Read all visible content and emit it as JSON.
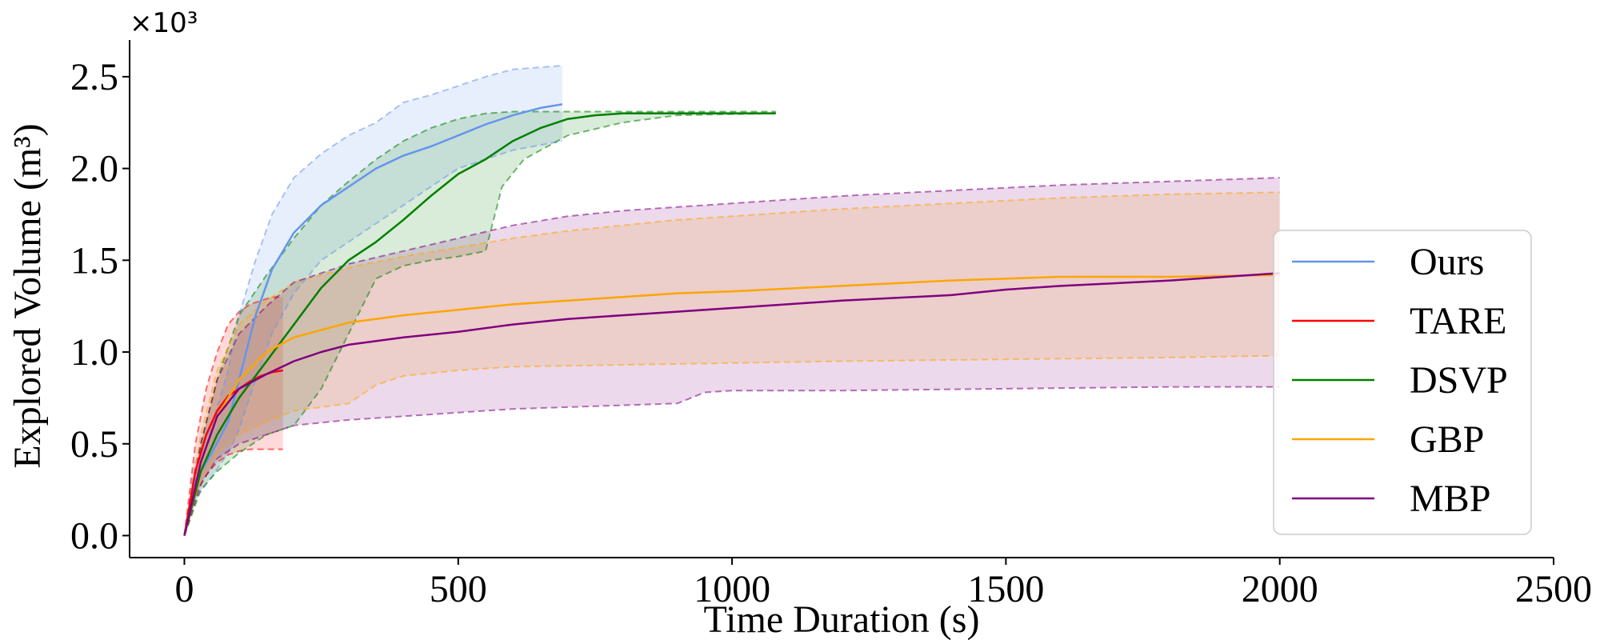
{
  "chart_data": {
    "type": "line",
    "xlabel": "Time Duration (s)",
    "ylabel": "Explored Volume (m³)",
    "y_multiplier_label": "×10³",
    "xlim": [
      -100,
      2500
    ],
    "ylim": [
      -0.12,
      2.7
    ],
    "x_ticks": [
      0,
      500,
      1000,
      1500,
      2000,
      2500
    ],
    "x_tick_labels": [
      "0",
      "500",
      "1000",
      "1500",
      "2000",
      "2500"
    ],
    "y_ticks": [
      0.0,
      0.5,
      1.0,
      1.5,
      2.0,
      2.5
    ],
    "y_tick_labels": [
      "0.0",
      "0.5",
      "1.0",
      "1.5",
      "2.0",
      "2.5"
    ],
    "grid": false,
    "legend_position": "right",
    "series": [
      {
        "name": "Ours",
        "color": "#6495ED",
        "mean": [
          [
            0,
            0
          ],
          [
            20,
            0.3
          ],
          [
            50,
            0.45
          ],
          [
            80,
            0.62
          ],
          [
            100,
            0.85
          ],
          [
            130,
            1.2
          ],
          [
            160,
            1.45
          ],
          [
            200,
            1.65
          ],
          [
            250,
            1.8
          ],
          [
            300,
            1.9
          ],
          [
            350,
            2.0
          ],
          [
            400,
            2.07
          ],
          [
            450,
            2.12
          ],
          [
            500,
            2.18
          ],
          [
            550,
            2.24
          ],
          [
            600,
            2.29
          ],
          [
            650,
            2.33
          ],
          [
            690,
            2.35
          ]
        ],
        "upper": [
          [
            0,
            0
          ],
          [
            20,
            0.4
          ],
          [
            50,
            0.6
          ],
          [
            80,
            0.9
          ],
          [
            100,
            1.2
          ],
          [
            130,
            1.5
          ],
          [
            160,
            1.75
          ],
          [
            200,
            1.95
          ],
          [
            250,
            2.08
          ],
          [
            300,
            2.18
          ],
          [
            350,
            2.25
          ],
          [
            400,
            2.36
          ],
          [
            450,
            2.4
          ],
          [
            500,
            2.45
          ],
          [
            550,
            2.5
          ],
          [
            600,
            2.54
          ],
          [
            690,
            2.56
          ]
        ],
        "lower": [
          [
            0,
            0
          ],
          [
            20,
            0.2
          ],
          [
            50,
            0.32
          ],
          [
            80,
            0.45
          ],
          [
            100,
            0.58
          ],
          [
            130,
            0.85
          ],
          [
            160,
            1.1
          ],
          [
            200,
            1.32
          ],
          [
            250,
            1.5
          ],
          [
            300,
            1.6
          ],
          [
            350,
            1.7
          ],
          [
            400,
            1.8
          ],
          [
            450,
            1.9
          ],
          [
            500,
            2.0
          ],
          [
            550,
            2.05
          ],
          [
            600,
            2.1
          ],
          [
            690,
            2.15
          ]
        ]
      },
      {
        "name": "TARE",
        "color": "#FF0000",
        "mean": [
          [
            0,
            0
          ],
          [
            20,
            0.35
          ],
          [
            40,
            0.55
          ],
          [
            60,
            0.68
          ],
          [
            80,
            0.76
          ],
          [
            100,
            0.8
          ],
          [
            120,
            0.84
          ],
          [
            140,
            0.87
          ],
          [
            160,
            0.89
          ],
          [
            180,
            0.9
          ]
        ],
        "upper": [
          [
            0,
            0
          ],
          [
            20,
            0.5
          ],
          [
            40,
            0.8
          ],
          [
            60,
            1.0
          ],
          [
            80,
            1.15
          ],
          [
            100,
            1.22
          ],
          [
            120,
            1.26
          ],
          [
            140,
            1.28
          ],
          [
            160,
            1.3
          ],
          [
            180,
            1.3
          ]
        ],
        "lower": [
          [
            0,
            0
          ],
          [
            20,
            0.22
          ],
          [
            40,
            0.33
          ],
          [
            60,
            0.4
          ],
          [
            80,
            0.44
          ],
          [
            100,
            0.46
          ],
          [
            120,
            0.47
          ],
          [
            180,
            0.47
          ]
        ]
      },
      {
        "name": "DSVP",
        "color": "#008000",
        "mean": [
          [
            0,
            0
          ],
          [
            30,
            0.35
          ],
          [
            60,
            0.55
          ],
          [
            100,
            0.75
          ],
          [
            150,
            0.95
          ],
          [
            200,
            1.15
          ],
          [
            250,
            1.35
          ],
          [
            300,
            1.5
          ],
          [
            350,
            1.6
          ],
          [
            400,
            1.72
          ],
          [
            450,
            1.85
          ],
          [
            500,
            1.97
          ],
          [
            550,
            2.05
          ],
          [
            600,
            2.15
          ],
          [
            650,
            2.22
          ],
          [
            700,
            2.27
          ],
          [
            750,
            2.29
          ],
          [
            800,
            2.3
          ],
          [
            900,
            2.3
          ],
          [
            1080,
            2.3
          ]
        ],
        "upper": [
          [
            0,
            0
          ],
          [
            30,
            0.5
          ],
          [
            60,
            0.85
          ],
          [
            100,
            1.2
          ],
          [
            150,
            1.42
          ],
          [
            200,
            1.62
          ],
          [
            250,
            1.8
          ],
          [
            300,
            1.93
          ],
          [
            350,
            2.05
          ],
          [
            400,
            2.15
          ],
          [
            450,
            2.22
          ],
          [
            500,
            2.27
          ],
          [
            550,
            2.3
          ],
          [
            600,
            2.31
          ],
          [
            1080,
            2.31
          ]
        ],
        "lower": [
          [
            0,
            0
          ],
          [
            30,
            0.25
          ],
          [
            60,
            0.35
          ],
          [
            100,
            0.45
          ],
          [
            150,
            0.55
          ],
          [
            200,
            0.6
          ],
          [
            250,
            0.8
          ],
          [
            300,
            1.1
          ],
          [
            350,
            1.4
          ],
          [
            400,
            1.47
          ],
          [
            450,
            1.5
          ],
          [
            500,
            1.52
          ],
          [
            550,
            1.55
          ],
          [
            580,
            1.9
          ],
          [
            620,
            2.05
          ],
          [
            700,
            2.18
          ],
          [
            800,
            2.25
          ],
          [
            900,
            2.29
          ],
          [
            1080,
            2.3
          ]
        ]
      },
      {
        "name": "GBP",
        "color": "#FFA500",
        "mean": [
          [
            0,
            0
          ],
          [
            30,
            0.4
          ],
          [
            60,
            0.65
          ],
          [
            100,
            0.85
          ],
          [
            150,
            1.0
          ],
          [
            200,
            1.08
          ],
          [
            300,
            1.16
          ],
          [
            400,
            1.2
          ],
          [
            500,
            1.23
          ],
          [
            600,
            1.26
          ],
          [
            700,
            1.28
          ],
          [
            800,
            1.3
          ],
          [
            900,
            1.32
          ],
          [
            1000,
            1.33
          ],
          [
            1200,
            1.36
          ],
          [
            1400,
            1.39
          ],
          [
            1600,
            1.41
          ],
          [
            1800,
            1.41
          ],
          [
            2000,
            1.42
          ]
        ],
        "upper": [
          [
            0,
            0
          ],
          [
            30,
            0.55
          ],
          [
            60,
            0.9
          ],
          [
            100,
            1.15
          ],
          [
            150,
            1.28
          ],
          [
            200,
            1.38
          ],
          [
            300,
            1.46
          ],
          [
            400,
            1.52
          ],
          [
            500,
            1.57
          ],
          [
            600,
            1.62
          ],
          [
            700,
            1.66
          ],
          [
            800,
            1.69
          ],
          [
            900,
            1.72
          ],
          [
            1000,
            1.74
          ],
          [
            1200,
            1.78
          ],
          [
            1400,
            1.81
          ],
          [
            1600,
            1.84
          ],
          [
            1800,
            1.86
          ],
          [
            2000,
            1.87
          ]
        ],
        "lower": [
          [
            0,
            0
          ],
          [
            30,
            0.3
          ],
          [
            60,
            0.45
          ],
          [
            100,
            0.55
          ],
          [
            150,
            0.62
          ],
          [
            200,
            0.68
          ],
          [
            300,
            0.72
          ],
          [
            350,
            0.82
          ],
          [
            400,
            0.87
          ],
          [
            500,
            0.9
          ],
          [
            600,
            0.92
          ],
          [
            800,
            0.93
          ],
          [
            1000,
            0.94
          ],
          [
            1200,
            0.95
          ],
          [
            1500,
            0.96
          ],
          [
            1800,
            0.97
          ],
          [
            2000,
            0.98
          ]
        ]
      },
      {
        "name": "MBP",
        "color": "#800080",
        "mean": [
          [
            0,
            0
          ],
          [
            30,
            0.4
          ],
          [
            60,
            0.65
          ],
          [
            100,
            0.8
          ],
          [
            150,
            0.88
          ],
          [
            200,
            0.95
          ],
          [
            250,
            1.0
          ],
          [
            300,
            1.04
          ],
          [
            400,
            1.08
          ],
          [
            500,
            1.11
          ],
          [
            600,
            1.15
          ],
          [
            700,
            1.18
          ],
          [
            800,
            1.2
          ],
          [
            900,
            1.22
          ],
          [
            1000,
            1.24
          ],
          [
            1200,
            1.28
          ],
          [
            1400,
            1.31
          ],
          [
            1500,
            1.34
          ],
          [
            1600,
            1.36
          ],
          [
            1800,
            1.39
          ],
          [
            2000,
            1.43
          ]
        ],
        "upper": [
          [
            0,
            0
          ],
          [
            30,
            0.5
          ],
          [
            60,
            0.85
          ],
          [
            100,
            1.1
          ],
          [
            150,
            1.25
          ],
          [
            200,
            1.38
          ],
          [
            300,
            1.48
          ],
          [
            400,
            1.55
          ],
          [
            500,
            1.62
          ],
          [
            600,
            1.69
          ],
          [
            700,
            1.74
          ],
          [
            800,
            1.77
          ],
          [
            900,
            1.79
          ],
          [
            1000,
            1.81
          ],
          [
            1200,
            1.85
          ],
          [
            1400,
            1.88
          ],
          [
            1600,
            1.91
          ],
          [
            1800,
            1.93
          ],
          [
            2000,
            1.95
          ]
        ],
        "lower": [
          [
            0,
            0
          ],
          [
            30,
            0.28
          ],
          [
            60,
            0.42
          ],
          [
            100,
            0.5
          ],
          [
            150,
            0.55
          ],
          [
            200,
            0.6
          ],
          [
            300,
            0.63
          ],
          [
            400,
            0.65
          ],
          [
            500,
            0.67
          ],
          [
            600,
            0.69
          ],
          [
            700,
            0.7
          ],
          [
            900,
            0.72
          ],
          [
            950,
            0.78
          ],
          [
            1000,
            0.79
          ],
          [
            1200,
            0.79
          ],
          [
            1500,
            0.8
          ],
          [
            1800,
            0.81
          ],
          [
            2000,
            0.81
          ]
        ]
      }
    ]
  }
}
